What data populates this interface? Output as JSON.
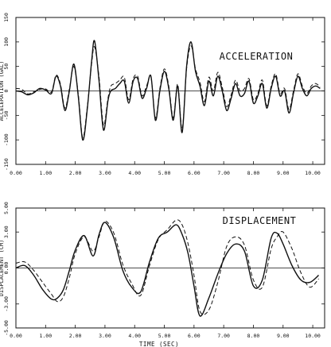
{
  "chart_data": [
    {
      "type": "line",
      "title": "ACCELERATION",
      "ylabel": "ACCELERATION (GAL)",
      "xlabel": "",
      "xlim": [
        0,
        10.4
      ],
      "ylim": [
        -150,
        150
      ],
      "yticks": [
        -150,
        -100,
        -50,
        0,
        50,
        100,
        150
      ],
      "ytick_labels": [
        "-150",
        "-100",
        "-50",
        "0",
        "50",
        "100",
        "150"
      ],
      "xticks": [
        0,
        1,
        2,
        3,
        4,
        5,
        6,
        7,
        8,
        9,
        10
      ],
      "xtick_labels": [
        "0.00",
        "1.00",
        "2.00",
        "3.00",
        "4.00",
        "5.00",
        "6.00",
        "7.00",
        "8.00",
        "9.00",
        "10.00"
      ],
      "grid": false,
      "series": [
        {
          "style": "solid",
          "x": [
            0,
            0.2,
            0.4,
            0.6,
            0.8,
            1.0,
            1.2,
            1.35,
            1.5,
            1.65,
            1.8,
            1.95,
            2.1,
            2.25,
            2.4,
            2.55,
            2.65,
            2.8,
            2.95,
            3.1,
            3.2,
            3.35,
            3.5,
            3.65,
            3.8,
            3.95,
            4.1,
            4.25,
            4.4,
            4.55,
            4.7,
            4.85,
            5.0,
            5.15,
            5.3,
            5.45,
            5.6,
            5.75,
            5.9,
            6.05,
            6.2,
            6.35,
            6.5,
            6.65,
            6.8,
            6.95,
            7.1,
            7.25,
            7.4,
            7.55,
            7.7,
            7.85,
            8.0,
            8.15,
            8.3,
            8.45,
            8.6,
            8.75,
            8.9,
            9.05,
            9.2,
            9.35,
            9.5,
            9.65,
            9.8,
            9.95,
            10.1,
            10.25
          ],
          "y": [
            0,
            -2,
            -8,
            -4,
            5,
            2,
            -5,
            30,
            10,
            -40,
            0,
            55,
            -10,
            -100,
            -40,
            60,
            102,
            20,
            -80,
            -20,
            0,
            5,
            15,
            20,
            -25,
            20,
            25,
            -15,
            5,
            30,
            -60,
            0,
            40,
            5,
            -60,
            10,
            -85,
            50,
            100,
            40,
            10,
            -30,
            20,
            -10,
            30,
            0,
            -40,
            -15,
            15,
            -10,
            -5,
            20,
            -25,
            -10,
            15,
            -35,
            5,
            30,
            -10,
            0,
            -45,
            -5,
            30,
            5,
            -10,
            5,
            10,
            5
          ]
        },
        {
          "style": "dashed",
          "x": [
            0,
            0.2,
            0.4,
            0.6,
            0.8,
            1.0,
            1.2,
            1.35,
            1.5,
            1.65,
            1.8,
            1.95,
            2.1,
            2.25,
            2.4,
            2.55,
            2.65,
            2.8,
            2.95,
            3.1,
            3.2,
            3.35,
            3.5,
            3.65,
            3.8,
            3.95,
            4.1,
            4.25,
            4.4,
            4.55,
            4.7,
            4.85,
            5.0,
            5.15,
            5.3,
            5.45,
            5.6,
            5.75,
            5.9,
            6.05,
            6.2,
            6.35,
            6.5,
            6.65,
            6.8,
            6.95,
            7.1,
            7.25,
            7.4,
            7.55,
            7.7,
            7.85,
            8.0,
            8.15,
            8.3,
            8.45,
            8.6,
            8.75,
            8.9,
            9.05,
            9.2,
            9.35,
            9.5,
            9.65,
            9.8,
            9.95,
            10.1,
            10.25
          ],
          "y": [
            5,
            3,
            -6,
            -2,
            3,
            4,
            -2,
            32,
            14,
            -35,
            4,
            50,
            -5,
            -95,
            -35,
            55,
            90,
            28,
            -70,
            -15,
            10,
            15,
            22,
            28,
            -18,
            25,
            30,
            -10,
            10,
            28,
            -55,
            5,
            45,
            10,
            -55,
            14,
            -78,
            45,
            92,
            45,
            18,
            -22,
            28,
            0,
            38,
            8,
            -32,
            -8,
            22,
            0,
            5,
            25,
            -18,
            -5,
            22,
            -30,
            10,
            35,
            -5,
            5,
            -38,
            0,
            35,
            10,
            -5,
            10,
            15,
            8
          ]
        }
      ]
    },
    {
      "type": "line",
      "title": "DISPLACEMENT",
      "ylabel": "DISPLACEMENT (CM)",
      "xlabel": "TIME (SEC)",
      "xlim": [
        0,
        10.4
      ],
      "ylim": [
        -5,
        5
      ],
      "yticks": [
        -5,
        -3,
        0,
        3,
        5
      ],
      "ytick_labels": [
        "-5.00",
        "-3.00",
        "0.00",
        "3.00",
        "5.00"
      ],
      "xticks": [
        0,
        1,
        2,
        3,
        4,
        5,
        6,
        7,
        8,
        9,
        10
      ],
      "xtick_labels": [
        "0.00",
        "1.00",
        "2.00",
        "3.00",
        "4.00",
        "5.00",
        "6.00",
        "7.00",
        "8.00",
        "9.00",
        "10.00"
      ],
      "grid": false,
      "series": [
        {
          "style": "solid",
          "x": [
            0,
            0.3,
            0.6,
            0.9,
            1.2,
            1.4,
            1.6,
            1.8,
            2.0,
            2.3,
            2.6,
            2.8,
            3.0,
            3.3,
            3.6,
            3.9,
            4.2,
            4.5,
            4.8,
            5.1,
            5.4,
            5.6,
            5.8,
            6.0,
            6.2,
            6.5,
            6.8,
            7.1,
            7.4,
            7.7,
            8.0,
            8.3,
            8.6,
            8.8,
            9.0,
            9.3,
            9.6,
            9.9,
            10.2
          ],
          "y": [
            0,
            0.2,
            -0.6,
            -1.8,
            -2.6,
            -2.5,
            -1.8,
            -0.2,
            1.5,
            2.7,
            1.0,
            2.8,
            3.8,
            2.5,
            -0.2,
            -1.6,
            -2.0,
            0.5,
            2.5,
            3.0,
            3.6,
            2.8,
            1.2,
            -1.5,
            -4.0,
            -2.5,
            -0.5,
            1.2,
            2.0,
            1.4,
            -1.5,
            -1.0,
            2.5,
            2.9,
            2.0,
            0.2,
            -1.0,
            -1.2,
            -0.6
          ]
        },
        {
          "style": "dashed",
          "x": [
            0,
            0.3,
            0.6,
            0.9,
            1.2,
            1.4,
            1.6,
            1.8,
            2.0,
            2.3,
            2.6,
            2.8,
            3.0,
            3.3,
            3.6,
            3.9,
            4.2,
            4.5,
            4.8,
            5.1,
            5.4,
            5.6,
            5.8,
            6.0,
            6.2,
            6.5,
            6.8,
            7.1,
            7.4,
            7.7,
            8.0,
            8.3,
            8.6,
            8.8,
            9.0,
            9.3,
            9.6,
            9.9,
            10.2
          ],
          "y": [
            0.4,
            0.5,
            -0.2,
            -1.2,
            -2.2,
            -2.8,
            -2.4,
            -0.8,
            1.2,
            2.6,
            1.4,
            2.6,
            3.9,
            2.9,
            0.3,
            -1.3,
            -2.3,
            0.2,
            2.4,
            3.2,
            4.0,
            3.6,
            2.0,
            -0.6,
            -3.6,
            -3.5,
            -1.2,
            1.8,
            2.6,
            1.9,
            -1.0,
            -1.6,
            1.6,
            2.6,
            3.0,
            1.6,
            -0.4,
            -1.6,
            -0.9
          ]
        }
      ]
    }
  ]
}
